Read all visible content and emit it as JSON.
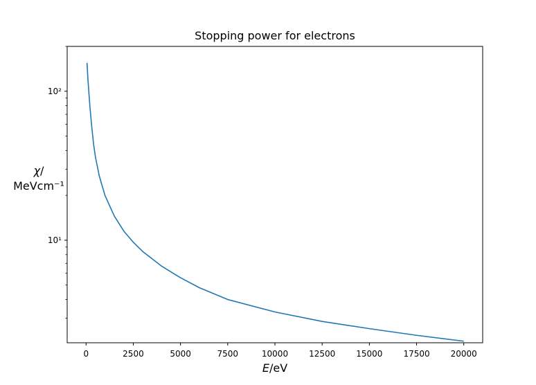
{
  "chart_data": {
    "type": "line",
    "title": "Stopping power for electrons",
    "xlabel": "E/eV",
    "ylabel_line1": "χ/",
    "ylabel_line2": "MeVcm⁻¹",
    "x_scale": "linear",
    "y_scale": "log",
    "xlim": [
      -1000,
      21000
    ],
    "ylim": [
      2.05,
      200
    ],
    "grid": false,
    "legend": "none",
    "x_ticks": [
      0,
      2500,
      5000,
      7500,
      10000,
      12500,
      15000,
      17500,
      20000
    ],
    "x_tick_labels": [
      "0",
      "2500",
      "5000",
      "7500",
      "10000",
      "12500",
      "15000",
      "17500",
      "20000"
    ],
    "y_major_ticks": [
      10,
      100
    ],
    "y_major_tick_labels": [
      "10¹",
      "10²"
    ],
    "series": [
      {
        "color": "#1f77b4",
        "x": [
          50,
          100,
          200,
          300,
          400,
          500,
          700,
          1000,
          1500,
          2000,
          2500,
          3000,
          4000,
          5000,
          6000,
          7500,
          10000,
          12500,
          15000,
          17500,
          20000
        ],
        "y": [
          155,
          120,
          80,
          58,
          44,
          36,
          27,
          20,
          14.5,
          11.5,
          9.7,
          8.4,
          6.7,
          5.6,
          4.8,
          4.0,
          3.3,
          2.85,
          2.55,
          2.3,
          2.1
        ]
      }
    ]
  }
}
